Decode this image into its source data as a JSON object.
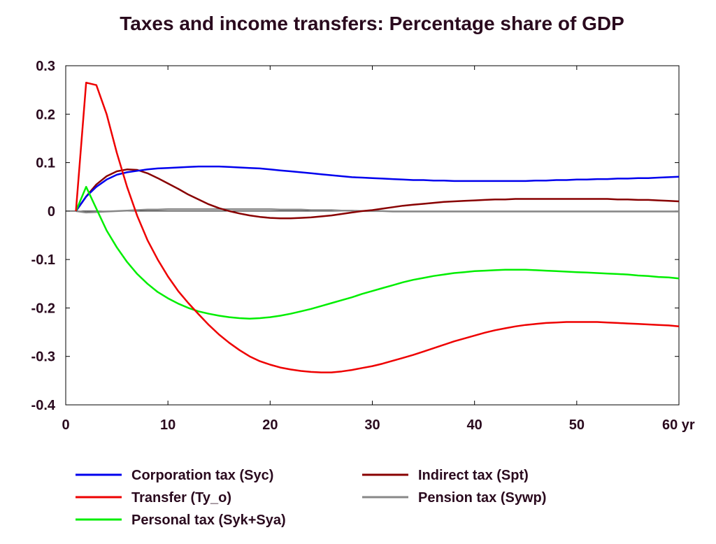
{
  "chart_data": {
    "type": "line",
    "title": "Taxes and income transfers: Percentage share of GDP",
    "xlabel": "",
    "ylabel": "",
    "xlim": [
      0,
      60
    ],
    "ylim": [
      -0.4,
      0.3
    ],
    "xticks": [
      0,
      10,
      20,
      30,
      40,
      50,
      60
    ],
    "xtick_labels": [
      "0",
      "10",
      "20",
      "30",
      "40",
      "50",
      "60 yr"
    ],
    "yticks": [
      0.3,
      0.2,
      0.1,
      0,
      -0.1,
      -0.2,
      -0.3,
      -0.4
    ],
    "ytick_labels": [
      "0.3",
      "0.2",
      "0.1",
      "0",
      "-0.1",
      "-0.2",
      "-0.3",
      "-0.4"
    ],
    "grid": false,
    "legend_position": "bottom",
    "x": [
      1,
      2,
      3,
      4,
      5,
      6,
      7,
      8,
      9,
      10,
      11,
      12,
      13,
      14,
      15,
      16,
      17,
      18,
      19,
      20,
      21,
      22,
      23,
      24,
      25,
      26,
      27,
      28,
      29,
      30,
      31,
      32,
      33,
      34,
      35,
      36,
      37,
      38,
      39,
      40,
      41,
      42,
      43,
      44,
      45,
      46,
      47,
      48,
      49,
      50,
      51,
      52,
      53,
      54,
      55,
      56,
      57,
      58,
      59,
      60
    ],
    "series": [
      {
        "name": "Corporation tax (Syc)",
        "color": "#0000ee",
        "values": [
          0,
          0.03,
          0.05,
          0.065,
          0.075,
          0.08,
          0.083,
          0.086,
          0.088,
          0.089,
          0.09,
          0.091,
          0.092,
          0.092,
          0.092,
          0.091,
          0.09,
          0.089,
          0.088,
          0.086,
          0.084,
          0.082,
          0.08,
          0.078,
          0.076,
          0.074,
          0.072,
          0.07,
          0.069,
          0.068,
          0.067,
          0.066,
          0.065,
          0.064,
          0.064,
          0.063,
          0.063,
          0.062,
          0.062,
          0.062,
          0.062,
          0.062,
          0.062,
          0.062,
          0.062,
          0.063,
          0.063,
          0.064,
          0.064,
          0.065,
          0.065,
          0.066,
          0.066,
          0.067,
          0.067,
          0.068,
          0.068,
          0.069,
          0.07,
          0.071
        ]
      },
      {
        "name": "Indirect tax (Spt)",
        "color": "#880000",
        "values": [
          0,
          0.03,
          0.055,
          0.072,
          0.082,
          0.086,
          0.085,
          0.078,
          0.068,
          0.057,
          0.046,
          0.034,
          0.024,
          0.014,
          0.006,
          0,
          -0.005,
          -0.009,
          -0.012,
          -0.014,
          -0.015,
          -0.015,
          -0.014,
          -0.013,
          -0.011,
          -0.009,
          -0.006,
          -0.003,
          0,
          0.002,
          0.005,
          0.008,
          0.011,
          0.013,
          0.015,
          0.017,
          0.019,
          0.02,
          0.021,
          0.022,
          0.023,
          0.024,
          0.024,
          0.025,
          0.025,
          0.025,
          0.025,
          0.025,
          0.025,
          0.025,
          0.025,
          0.025,
          0.025,
          0.024,
          0.024,
          0.023,
          0.023,
          0.022,
          0.021,
          0.02
        ]
      },
      {
        "name": "Transfer (Ty_o)",
        "color": "#ee0000",
        "values": [
          0,
          0.265,
          0.26,
          0.2,
          0.12,
          0.05,
          -0.01,
          -0.06,
          -0.1,
          -0.135,
          -0.165,
          -0.19,
          -0.213,
          -0.235,
          -0.255,
          -0.272,
          -0.287,
          -0.3,
          -0.31,
          -0.317,
          -0.323,
          -0.327,
          -0.33,
          -0.332,
          -0.333,
          -0.333,
          -0.331,
          -0.328,
          -0.324,
          -0.32,
          -0.315,
          -0.309,
          -0.303,
          -0.297,
          -0.29,
          -0.283,
          -0.276,
          -0.269,
          -0.263,
          -0.257,
          -0.251,
          -0.246,
          -0.242,
          -0.238,
          -0.235,
          -0.233,
          -0.231,
          -0.23,
          -0.229,
          -0.229,
          -0.229,
          -0.229,
          -0.23,
          -0.231,
          -0.232,
          -0.233,
          -0.234,
          -0.235,
          -0.236,
          -0.238
        ]
      },
      {
        "name": "Pension tax (Sywp)",
        "color": "#888888",
        "values": [
          0,
          -0.003,
          -0.002,
          -0.001,
          0,
          0.001,
          0.002,
          0.003,
          0.003,
          0.004,
          0.004,
          0.004,
          0.004,
          0.004,
          0.004,
          0.004,
          0.004,
          0.004,
          0.004,
          0.004,
          0.003,
          0.003,
          0.003,
          0.002,
          0.002,
          0.002,
          0.001,
          0.001,
          0,
          0,
          0,
          -0.001,
          -0.001,
          -0.001,
          -0.001,
          -0.001,
          -0.001,
          -0.001,
          -0.001,
          -0.001,
          -0.001,
          -0.001,
          -0.001,
          -0.001,
          -0.001,
          -0.001,
          -0.001,
          -0.001,
          -0.001,
          -0.001,
          -0.001,
          -0.001,
          -0.001,
          -0.001,
          -0.001,
          -0.001,
          -0.001,
          -0.001,
          -0.001,
          -0.001
        ]
      },
      {
        "name": "Personal tax (Syk+Sya)",
        "color": "#00ee00",
        "values": [
          0,
          0.05,
          0.005,
          -0.04,
          -0.075,
          -0.105,
          -0.13,
          -0.15,
          -0.167,
          -0.18,
          -0.191,
          -0.2,
          -0.207,
          -0.212,
          -0.216,
          -0.219,
          -0.221,
          -0.222,
          -0.221,
          -0.219,
          -0.216,
          -0.212,
          -0.207,
          -0.202,
          -0.196,
          -0.19,
          -0.184,
          -0.178,
          -0.171,
          -0.165,
          -0.159,
          -0.153,
          -0.147,
          -0.142,
          -0.138,
          -0.134,
          -0.131,
          -0.128,
          -0.126,
          -0.124,
          -0.123,
          -0.122,
          -0.121,
          -0.121,
          -0.121,
          -0.122,
          -0.123,
          -0.124,
          -0.125,
          -0.126,
          -0.127,
          -0.128,
          -0.129,
          -0.13,
          -0.131,
          -0.133,
          -0.134,
          -0.136,
          -0.137,
          -0.139
        ]
      }
    ],
    "legend": [
      {
        "label": "Corporation tax (Syc)",
        "color": "#0000ee"
      },
      {
        "label": "Indirect tax (Spt)",
        "color": "#880000"
      },
      {
        "label": "Transfer (Ty_o)",
        "color": "#ee0000"
      },
      {
        "label": "Pension tax (Sywp)",
        "color": "#888888"
      },
      {
        "label": "Personal tax (Syk+Sya)",
        "color": "#00ee00"
      }
    ]
  }
}
